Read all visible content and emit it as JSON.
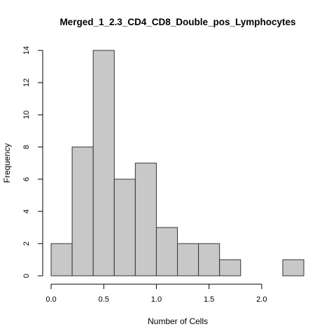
{
  "chart_data": {
    "type": "bar",
    "title": "Merged_1_2.3_CD4_CD8_Double_pos_Lymphocytes",
    "xlabel": "Number of Cells",
    "ylabel": "Frequency",
    "bins": [
      {
        "start": 0.0,
        "end": 0.2,
        "count": 2
      },
      {
        "start": 0.2,
        "end": 0.4,
        "count": 8
      },
      {
        "start": 0.4,
        "end": 0.6,
        "count": 14
      },
      {
        "start": 0.6,
        "end": 0.8,
        "count": 6
      },
      {
        "start": 0.8,
        "end": 1.0,
        "count": 7
      },
      {
        "start": 1.0,
        "end": 1.2,
        "count": 3
      },
      {
        "start": 1.2,
        "end": 1.4,
        "count": 2
      },
      {
        "start": 1.4,
        "end": 1.6,
        "count": 2
      },
      {
        "start": 1.6,
        "end": 1.8,
        "count": 1
      },
      {
        "start": 1.8,
        "end": 2.0,
        "count": 0
      },
      {
        "start": 2.0,
        "end": 2.2,
        "count": 0
      },
      {
        "start": 2.2,
        "end": 2.4,
        "count": 1
      }
    ],
    "xlim": [
      0.0,
      2.4
    ],
    "ylim": [
      0,
      14
    ],
    "x_ticks": [
      "0.0",
      "0.5",
      "1.0",
      "1.5",
      "2.0"
    ],
    "y_ticks": [
      "0",
      "2",
      "4",
      "6",
      "8",
      "10",
      "12",
      "14"
    ],
    "grid": false,
    "legend": "none",
    "colors": {
      "bar_fill": "#c8c8c8",
      "bar_stroke": "#333333"
    }
  }
}
